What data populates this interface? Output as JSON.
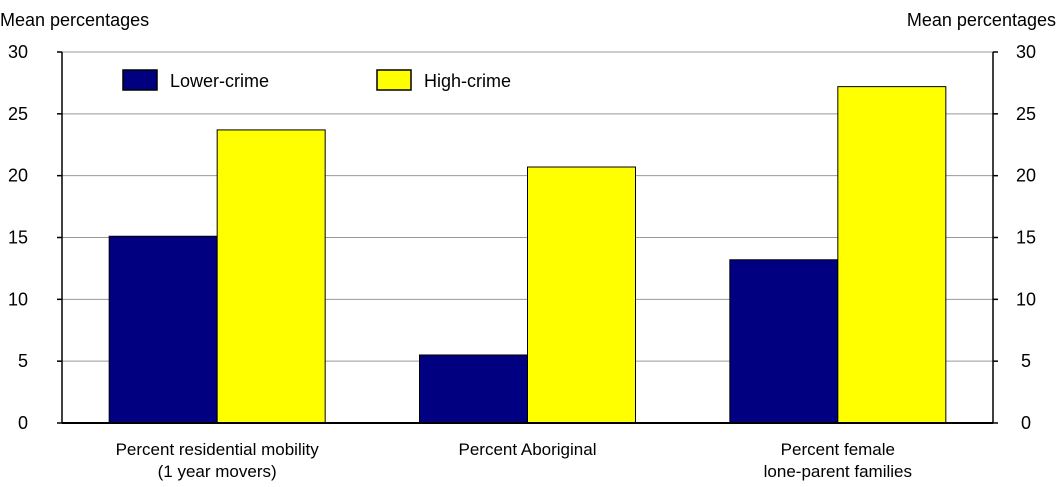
{
  "chart_data": {
    "type": "bar",
    "ylabel_left": "Mean percentages",
    "ylabel_right": "Mean percentages",
    "ylim": [
      0,
      30
    ],
    "yticks": [
      "0",
      "5",
      "10",
      "15",
      "20",
      "25",
      "30"
    ],
    "grid": true,
    "legend_position": "top-left",
    "categories": [
      [
        "Percent residential mobility",
        "(1 year movers)"
      ],
      [
        "Percent Aboriginal"
      ],
      [
        "Percent female",
        "lone-parent families"
      ]
    ],
    "series": [
      {
        "name": "Lower-crime",
        "color": "#000080",
        "values": [
          15.1,
          5.5,
          13.2
        ]
      },
      {
        "name": "High-crime",
        "color": "#ffff00",
        "values": [
          23.7,
          20.7,
          27.2
        ]
      }
    ]
  }
}
